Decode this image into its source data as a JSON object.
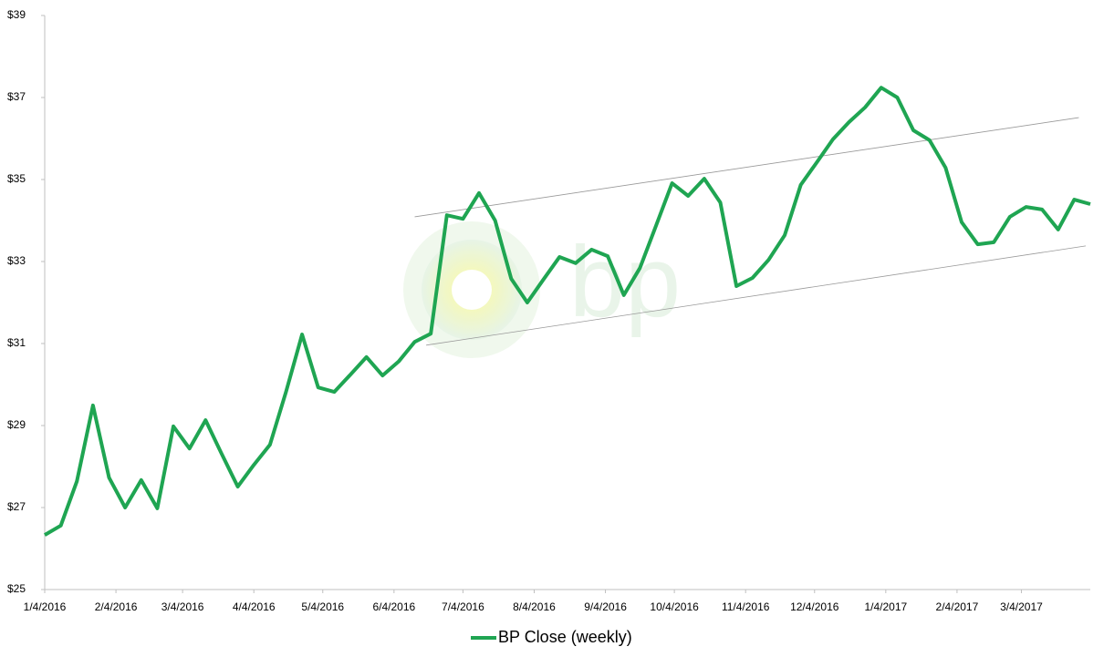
{
  "chart_data": {
    "type": "line",
    "watermark": "bp",
    "x": [
      "1/4/2016",
      "1/11/2016",
      "1/18/2016",
      "1/25/2016",
      "2/1/2016",
      "2/8/2016",
      "2/15/2016",
      "2/22/2016",
      "2/29/2016",
      "3/7/2016",
      "3/14/2016",
      "3/21/2016",
      "3/28/2016",
      "4/4/2016",
      "4/11/2016",
      "4/18/2016",
      "4/25/2016",
      "5/2/2016",
      "5/9/2016",
      "5/16/2016",
      "5/23/2016",
      "5/30/2016",
      "6/6/2016",
      "6/13/2016",
      "6/20/2016",
      "6/27/2016",
      "7/4/2016",
      "7/11/2016",
      "7/18/2016",
      "7/25/2016",
      "8/1/2016",
      "8/8/2016",
      "8/15/2016",
      "8/22/2016",
      "8/29/2016",
      "9/5/2016",
      "9/12/2016",
      "9/19/2016",
      "9/26/2016",
      "10/3/2016",
      "10/10/2016",
      "10/17/2016",
      "10/24/2016",
      "10/31/2016",
      "11/7/2016",
      "11/14/2016",
      "11/21/2016",
      "11/28/2016",
      "12/5/2016",
      "12/12/2016",
      "12/19/2016",
      "12/26/2016",
      "1/2/2017",
      "1/9/2017",
      "1/16/2017",
      "1/23/2017",
      "1/30/2017",
      "2/6/2017",
      "2/13/2017",
      "2/20/2017",
      "2/27/2017",
      "3/6/2017",
      "3/13/2017",
      "3/20/2017",
      "3/27/2017",
      "4/3/2017"
    ],
    "series": [
      {
        "name": "BP Close (weekly)",
        "color": "#1fa552",
        "values": [
          26.33,
          26.56,
          27.64,
          29.49,
          27.73,
          27.0,
          27.67,
          26.98,
          28.98,
          28.44,
          29.13,
          28.31,
          27.51,
          28.04,
          28.53,
          29.82,
          31.22,
          29.93,
          29.82,
          30.24,
          30.67,
          30.22,
          30.56,
          31.04,
          31.24,
          34.13,
          34.04,
          34.67,
          34.0,
          32.58,
          32.0,
          32.56,
          33.11,
          32.96,
          33.29,
          33.13,
          32.18,
          32.84,
          33.87,
          34.91,
          34.6,
          35.02,
          34.44,
          32.4,
          32.6,
          33.04,
          33.64,
          34.87,
          35.42,
          35.98,
          36.4,
          36.76,
          37.24,
          37.0,
          36.2,
          35.96,
          35.29,
          33.96,
          33.42,
          33.47,
          34.09,
          34.33,
          34.27,
          33.78,
          34.51,
          34.4
        ]
      }
    ],
    "trend_lines": [
      {
        "color": "#999999",
        "x": [
          "6/13/2016",
          "3/29/2017"
        ],
        "values": [
          34.09,
          36.51
        ]
      },
      {
        "color": "#999999",
        "x": [
          "6/18/2016",
          "4/1/2017"
        ],
        "values": [
          30.96,
          33.38
        ]
      }
    ],
    "xlim": [
      "1/4/2016",
      "4/3/2017"
    ],
    "xticks": [
      "1/4/2016",
      "2/4/2016",
      "3/4/2016",
      "4/4/2016",
      "5/4/2016",
      "6/4/2016",
      "7/4/2016",
      "8/4/2016",
      "9/4/2016",
      "10/4/2016",
      "11/4/2016",
      "12/4/2016",
      "1/4/2017",
      "2/4/2017",
      "3/4/2017"
    ],
    "ylim": [
      25,
      39
    ],
    "yticks": [
      {
        "value": 25,
        "label": "$25"
      },
      {
        "value": 27,
        "label": "$27"
      },
      {
        "value": 29,
        "label": "$29"
      },
      {
        "value": 31,
        "label": "$31"
      },
      {
        "value": 33,
        "label": "$33"
      },
      {
        "value": 35,
        "label": "$35"
      },
      {
        "value": 37,
        "label": "$37"
      },
      {
        "value": 39,
        "label": "$39"
      }
    ],
    "grid": false,
    "legend": "bottom"
  }
}
